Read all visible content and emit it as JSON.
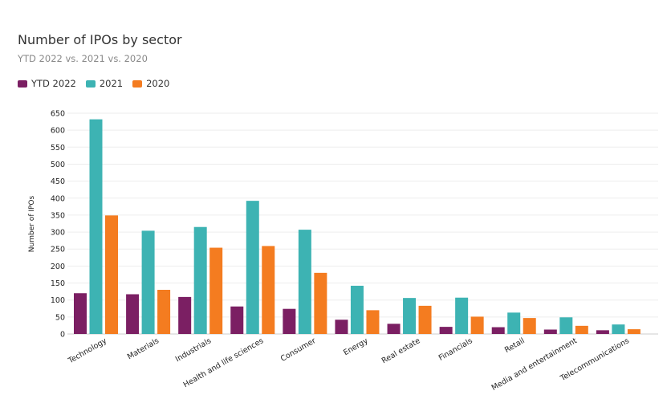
{
  "chart_data": {
    "type": "bar",
    "title": "Number of IPOs by sector",
    "subtitle": "YTD 2022 vs. 2021 vs. 2020",
    "ylabel": "Number of IPOs",
    "xlabel": "",
    "ylim": [
      0,
      650
    ],
    "yticks": [
      0,
      50,
      100,
      150,
      200,
      250,
      300,
      350,
      400,
      450,
      500,
      550,
      600,
      650
    ],
    "grid": true,
    "legend_position": "top-left",
    "categories": [
      "Technology",
      "Materials",
      "Industrials",
      "Health and life sciences",
      "Consumer",
      "Energy",
      "Real estate",
      "Financials",
      "Retail",
      "Media and entertainment",
      "Telecommunications"
    ],
    "series": [
      {
        "name": "YTD 2022",
        "color": "#7B1F63",
        "values": [
          120,
          117,
          109,
          81,
          74,
          42,
          30,
          21,
          20,
          13,
          11
        ]
      },
      {
        "name": "2021",
        "color": "#3DB3B3",
        "values": [
          632,
          304,
          315,
          392,
          307,
          142,
          106,
          107,
          63,
          49,
          28
        ]
      },
      {
        "name": "2020",
        "color": "#F47C20",
        "values": [
          349,
          130,
          254,
          259,
          180,
          70,
          83,
          51,
          47,
          24,
          14
        ]
      }
    ]
  }
}
